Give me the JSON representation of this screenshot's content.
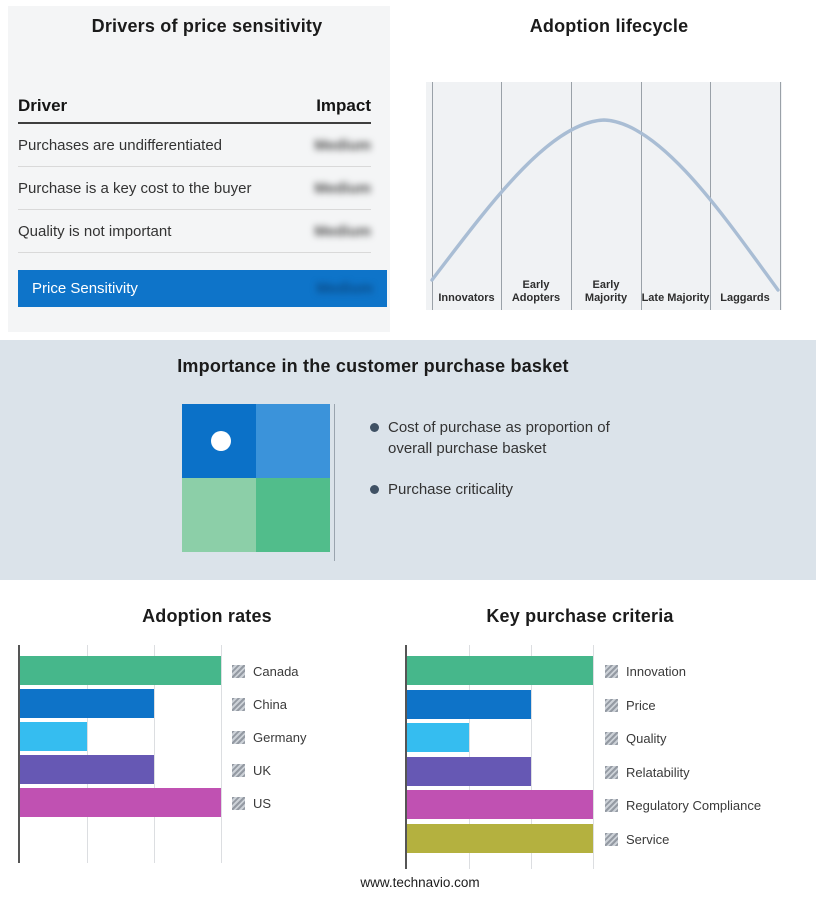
{
  "colors": {
    "accent_blue": "#0e74c9",
    "band_background": "#dbe3ea",
    "curve": "#a9bdd4"
  },
  "chart_data": [
    {
      "type": "table",
      "title": "Drivers of price sensitivity",
      "columns": [
        "Driver",
        "Impact"
      ],
      "rows": [
        [
          "Purchases are undifferentiated",
          "Medium"
        ],
        [
          "Purchase is a key cost to the buyer",
          "Medium"
        ],
        [
          "Quality is not important",
          "Medium"
        ],
        [
          "Price Sensitivity",
          "Medium"
        ]
      ]
    },
    {
      "type": "line",
      "title": "Adoption lifecycle",
      "shape": "bell_curve",
      "categories": [
        "Innovators",
        "Early Adopters",
        "Early Majority",
        "Late Majority",
        "Laggards"
      ],
      "values": [
        8,
        62,
        100,
        62,
        8
      ]
    },
    {
      "type": "bar",
      "title": "Adoption rates",
      "orientation": "horizontal",
      "categories": [
        "Canada",
        "China",
        "Germany",
        "UK",
        "US"
      ],
      "values": [
        3,
        2,
        1,
        2,
        3
      ],
      "xlim": [
        0,
        3
      ],
      "colors": [
        "#46b78b",
        "#0e73c8",
        "#35bdf0",
        "#6658b4",
        "#c051b2"
      ],
      "legend_position": "right",
      "grid": true
    },
    {
      "type": "bar",
      "title": "Key purchase criteria",
      "orientation": "horizontal",
      "categories": [
        "Innovation",
        "Price",
        "Quality",
        "Relatability",
        "Regulatory Compliance",
        "Service"
      ],
      "values": [
        3,
        2,
        1,
        2,
        3,
        3
      ],
      "xlim": [
        0,
        3
      ],
      "colors": [
        "#46b78b",
        "#0e73c8",
        "#35bdf0",
        "#6658b4",
        "#c051b2",
        "#b4b13f"
      ],
      "legend_position": "right",
      "grid": true
    }
  ],
  "basket": {
    "title": "Importance in the customer purchase basket",
    "bullets": [
      "Cost of purchase as proportion of overall purchase basket",
      "Purchase criticality"
    ],
    "quadrant_colors": {
      "top_left": "#0b71c8",
      "top_right": "#3b93da",
      "bottom_left": "#8ccfa8",
      "bottom_right": "#51bd8b"
    }
  },
  "footer": {
    "text": "www.technavio.com"
  }
}
